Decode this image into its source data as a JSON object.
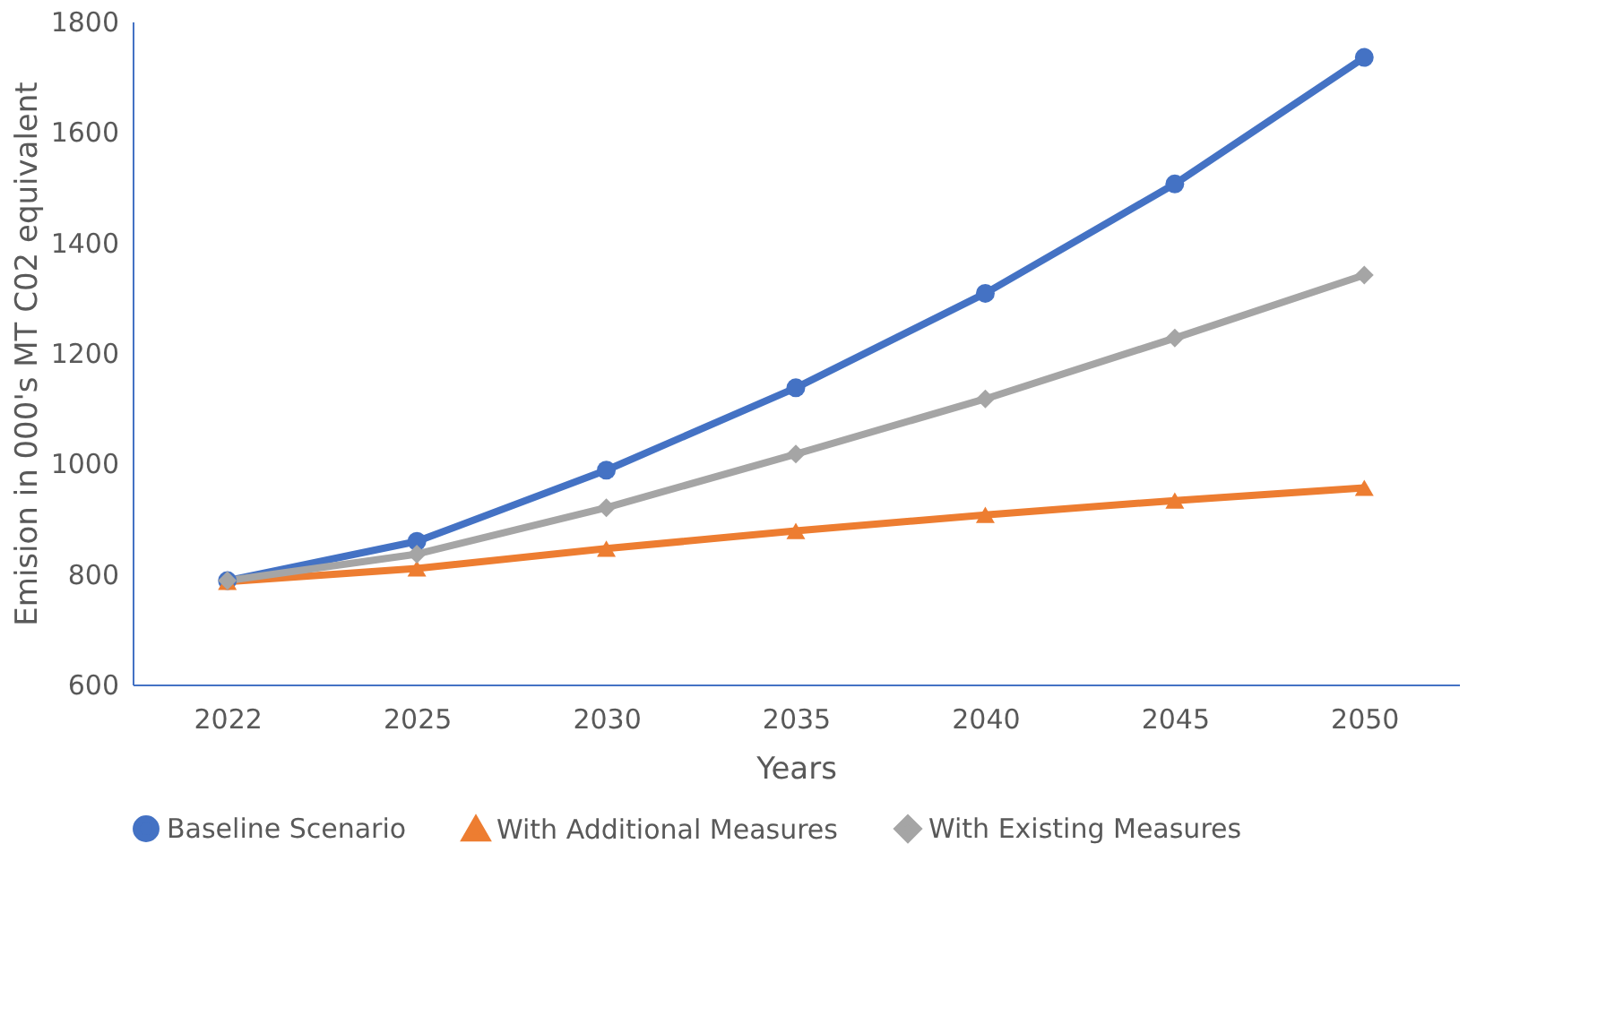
{
  "chart_data": {
    "type": "line",
    "xlabel": "Years",
    "ylabel": "Emision in 000's MT C02 equivalent",
    "categories": [
      "2022",
      "2025",
      "2030",
      "2035",
      "2040",
      "2045",
      "2050"
    ],
    "series": [
      {
        "name": "Baseline Scenario",
        "color": "#4472c4",
        "marker": "circle",
        "values": [
          788,
          859,
          988,
          1137,
          1308,
          1506,
          1735
        ]
      },
      {
        "name": "With Additional Measures",
        "color": "#ed7d31",
        "marker": "triangle",
        "values": [
          786,
          810,
          846,
          878,
          907,
          933,
          956
        ]
      },
      {
        "name": "With Existing Measures",
        "color": "#a5a5a5",
        "marker": "diamond",
        "values": [
          788,
          836,
          920,
          1017,
          1117,
          1227,
          1341
        ]
      }
    ],
    "ylim": [
      600,
      1800
    ],
    "yticks": [
      600,
      800,
      1000,
      1200,
      1400,
      1600,
      1800
    ],
    "grid": false,
    "legend": "bottom",
    "line_style": "solid"
  }
}
